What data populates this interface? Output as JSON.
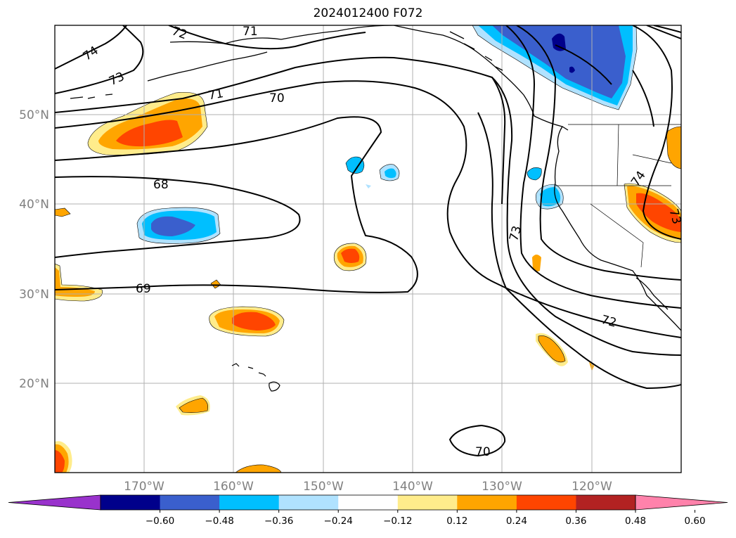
{
  "title": "2024012400 F072",
  "map": {
    "lat_labels": [
      "50°N",
      "40°N",
      "30°N",
      "20°N"
    ],
    "lon_labels": [
      "170°W",
      "160°W",
      "150°W",
      "140°W",
      "130°W",
      "120°W"
    ],
    "contour_labels": [
      "74",
      "73",
      "72",
      "71",
      "71",
      "70",
      "68",
      "69",
      "73",
      "72",
      "74",
      "73",
      "70"
    ],
    "contour_color": "#000000",
    "grid_color": "#b0b0b0"
  },
  "colorbar": {
    "colors": [
      "#9932cc",
      "#00008b",
      "#3a5fcd",
      "#00bfff",
      "#b0e2ff",
      "#ffffff",
      "#ffec8b",
      "#ffa500",
      "#ff4500",
      "#b22222",
      "#ff82ab"
    ],
    "tick_labels": [
      "−0.60",
      "−0.48",
      "−0.36",
      "−0.24",
      "−0.12",
      "0.12",
      "0.24",
      "0.36",
      "0.48",
      "0.60"
    ]
  }
}
